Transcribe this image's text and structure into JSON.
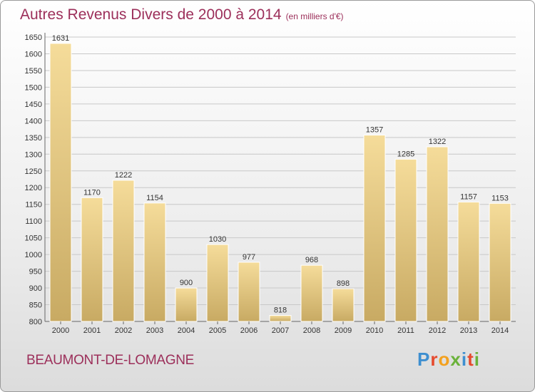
{
  "header": {
    "title": "Autres Revenus Divers de 2000 à 2014",
    "subtitle": "(en milliers d'€)"
  },
  "footer": {
    "commune": "BEAUMONT-DE-LOMAGNE",
    "logo_letters": [
      "P",
      "r",
      "o",
      "x",
      "i",
      "t",
      "i"
    ],
    "logo_colors": [
      "#3e8fd0",
      "#e64a2e",
      "#f3a11f",
      "#6ab23a",
      "#3e8fd0",
      "#e64a2e",
      "#6ab23a"
    ]
  },
  "colors": {
    "bar_light": "#f5dc9a",
    "bar_dark": "#c8aa63",
    "grid": "#c8c8c8",
    "axis_text": "#333333",
    "title": "#9c2f5a"
  },
  "chart_data": {
    "type": "bar",
    "categories": [
      "2000",
      "2001",
      "2002",
      "2003",
      "2004",
      "2005",
      "2006",
      "2007",
      "2008",
      "2009",
      "2010",
      "2011",
      "2012",
      "2013",
      "2014"
    ],
    "values": [
      1631,
      1170,
      1222,
      1154,
      900,
      1030,
      977,
      818,
      968,
      898,
      1357,
      1285,
      1322,
      1157,
      1153
    ],
    "ylim": [
      800,
      1650
    ],
    "yticks": [
      800,
      850,
      900,
      950,
      1000,
      1050,
      1100,
      1150,
      1200,
      1250,
      1300,
      1350,
      1400,
      1450,
      1500,
      1550,
      1600,
      1650
    ],
    "grid": true
  }
}
